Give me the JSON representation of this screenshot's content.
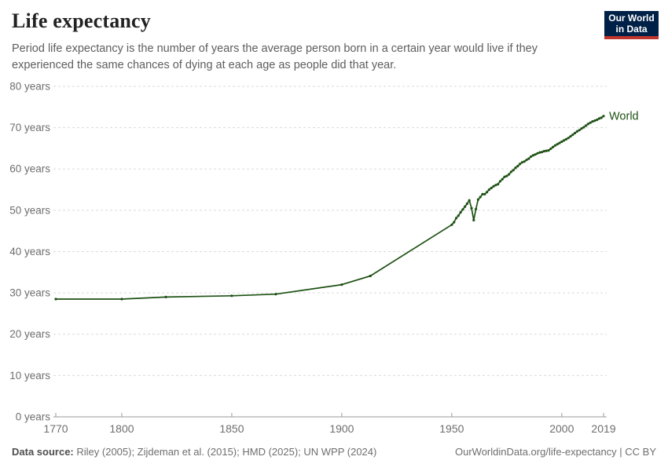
{
  "header": {
    "title": "Life expectancy",
    "subtitle": "Period life expectancy is the number of years the average person born in a certain year would live if they experienced the same chances of dying at each age as people did that year.",
    "logo": {
      "line1": "Our World",
      "line2": "in Data"
    }
  },
  "footer": {
    "source_label": "Data source:",
    "source_text": "Riley (2005); Zijdeman et al. (2015); HMD (2025); UN WPP (2024)",
    "attribution": "OurWorldinData.org/life-expectancy | CC BY"
  },
  "colors": {
    "series": "#1d5113",
    "grid": "#dadada",
    "axis": "#9a9a9a",
    "tick_label": "#6e6e6e",
    "logo_bg": "#002147",
    "logo_red": "#c0362c"
  },
  "chart_data": {
    "type": "line",
    "title": "Life expectancy",
    "xlabel": "",
    "ylabel": "",
    "xlim": [
      1770,
      2019
    ],
    "ylim": [
      0,
      80
    ],
    "x_ticks": [
      1770,
      1800,
      1850,
      1900,
      1950,
      2000,
      2019
    ],
    "y_ticks": [
      0,
      10,
      20,
      30,
      40,
      50,
      60,
      70,
      80
    ],
    "y_tick_suffix": " years",
    "grid": "horizontal-dashed",
    "legend_position": "end-of-line-label",
    "series": [
      {
        "name": "World",
        "color": "#1d5113",
        "points": [
          [
            1770,
            28.5
          ],
          [
            1800,
            28.5
          ],
          [
            1820,
            29.0
          ],
          [
            1850,
            29.3
          ],
          [
            1870,
            29.7
          ],
          [
            1900,
            32.0
          ],
          [
            1913,
            34.1
          ],
          [
            1950,
            46.5
          ],
          [
            1951,
            47.1
          ],
          [
            1952,
            48.1
          ],
          [
            1953,
            48.7
          ],
          [
            1954,
            49.5
          ],
          [
            1955,
            50.2
          ],
          [
            1956,
            50.9
          ],
          [
            1957,
            51.6
          ],
          [
            1958,
            52.4
          ],
          [
            1959,
            50.5
          ],
          [
            1960,
            47.6
          ],
          [
            1961,
            50.3
          ],
          [
            1962,
            52.6
          ],
          [
            1963,
            53.2
          ],
          [
            1964,
            53.9
          ],
          [
            1965,
            53.9
          ],
          [
            1966,
            54.4
          ],
          [
            1967,
            55.0
          ],
          [
            1968,
            55.4
          ],
          [
            1969,
            55.8
          ],
          [
            1970,
            56.1
          ],
          [
            1971,
            56.3
          ],
          [
            1972,
            57.0
          ],
          [
            1973,
            57.5
          ],
          [
            1974,
            58.1
          ],
          [
            1975,
            58.3
          ],
          [
            1976,
            58.7
          ],
          [
            1977,
            59.3
          ],
          [
            1978,
            59.7
          ],
          [
            1979,
            60.3
          ],
          [
            1980,
            60.7
          ],
          [
            1981,
            61.2
          ],
          [
            1982,
            61.6
          ],
          [
            1983,
            61.8
          ],
          [
            1984,
            62.2
          ],
          [
            1985,
            62.5
          ],
          [
            1986,
            63.0
          ],
          [
            1987,
            63.3
          ],
          [
            1988,
            63.5
          ],
          [
            1989,
            63.8
          ],
          [
            1990,
            64.0
          ],
          [
            1991,
            64.1
          ],
          [
            1992,
            64.3
          ],
          [
            1993,
            64.4
          ],
          [
            1994,
            64.5
          ],
          [
            1995,
            64.9
          ],
          [
            1996,
            65.3
          ],
          [
            1997,
            65.7
          ],
          [
            1998,
            66.0
          ],
          [
            1999,
            66.3
          ],
          [
            2000,
            66.6
          ],
          [
            2001,
            66.9
          ],
          [
            2002,
            67.2
          ],
          [
            2003,
            67.5
          ],
          [
            2004,
            67.9
          ],
          [
            2005,
            68.3
          ],
          [
            2006,
            68.7
          ],
          [
            2007,
            69.1
          ],
          [
            2008,
            69.4
          ],
          [
            2009,
            69.8
          ],
          [
            2010,
            70.1
          ],
          [
            2011,
            70.5
          ],
          [
            2012,
            70.9
          ],
          [
            2013,
            71.2
          ],
          [
            2014,
            71.5
          ],
          [
            2015,
            71.7
          ],
          [
            2016,
            71.9
          ],
          [
            2017,
            72.2
          ],
          [
            2018,
            72.4
          ],
          [
            2019,
            72.8
          ]
        ]
      }
    ]
  }
}
